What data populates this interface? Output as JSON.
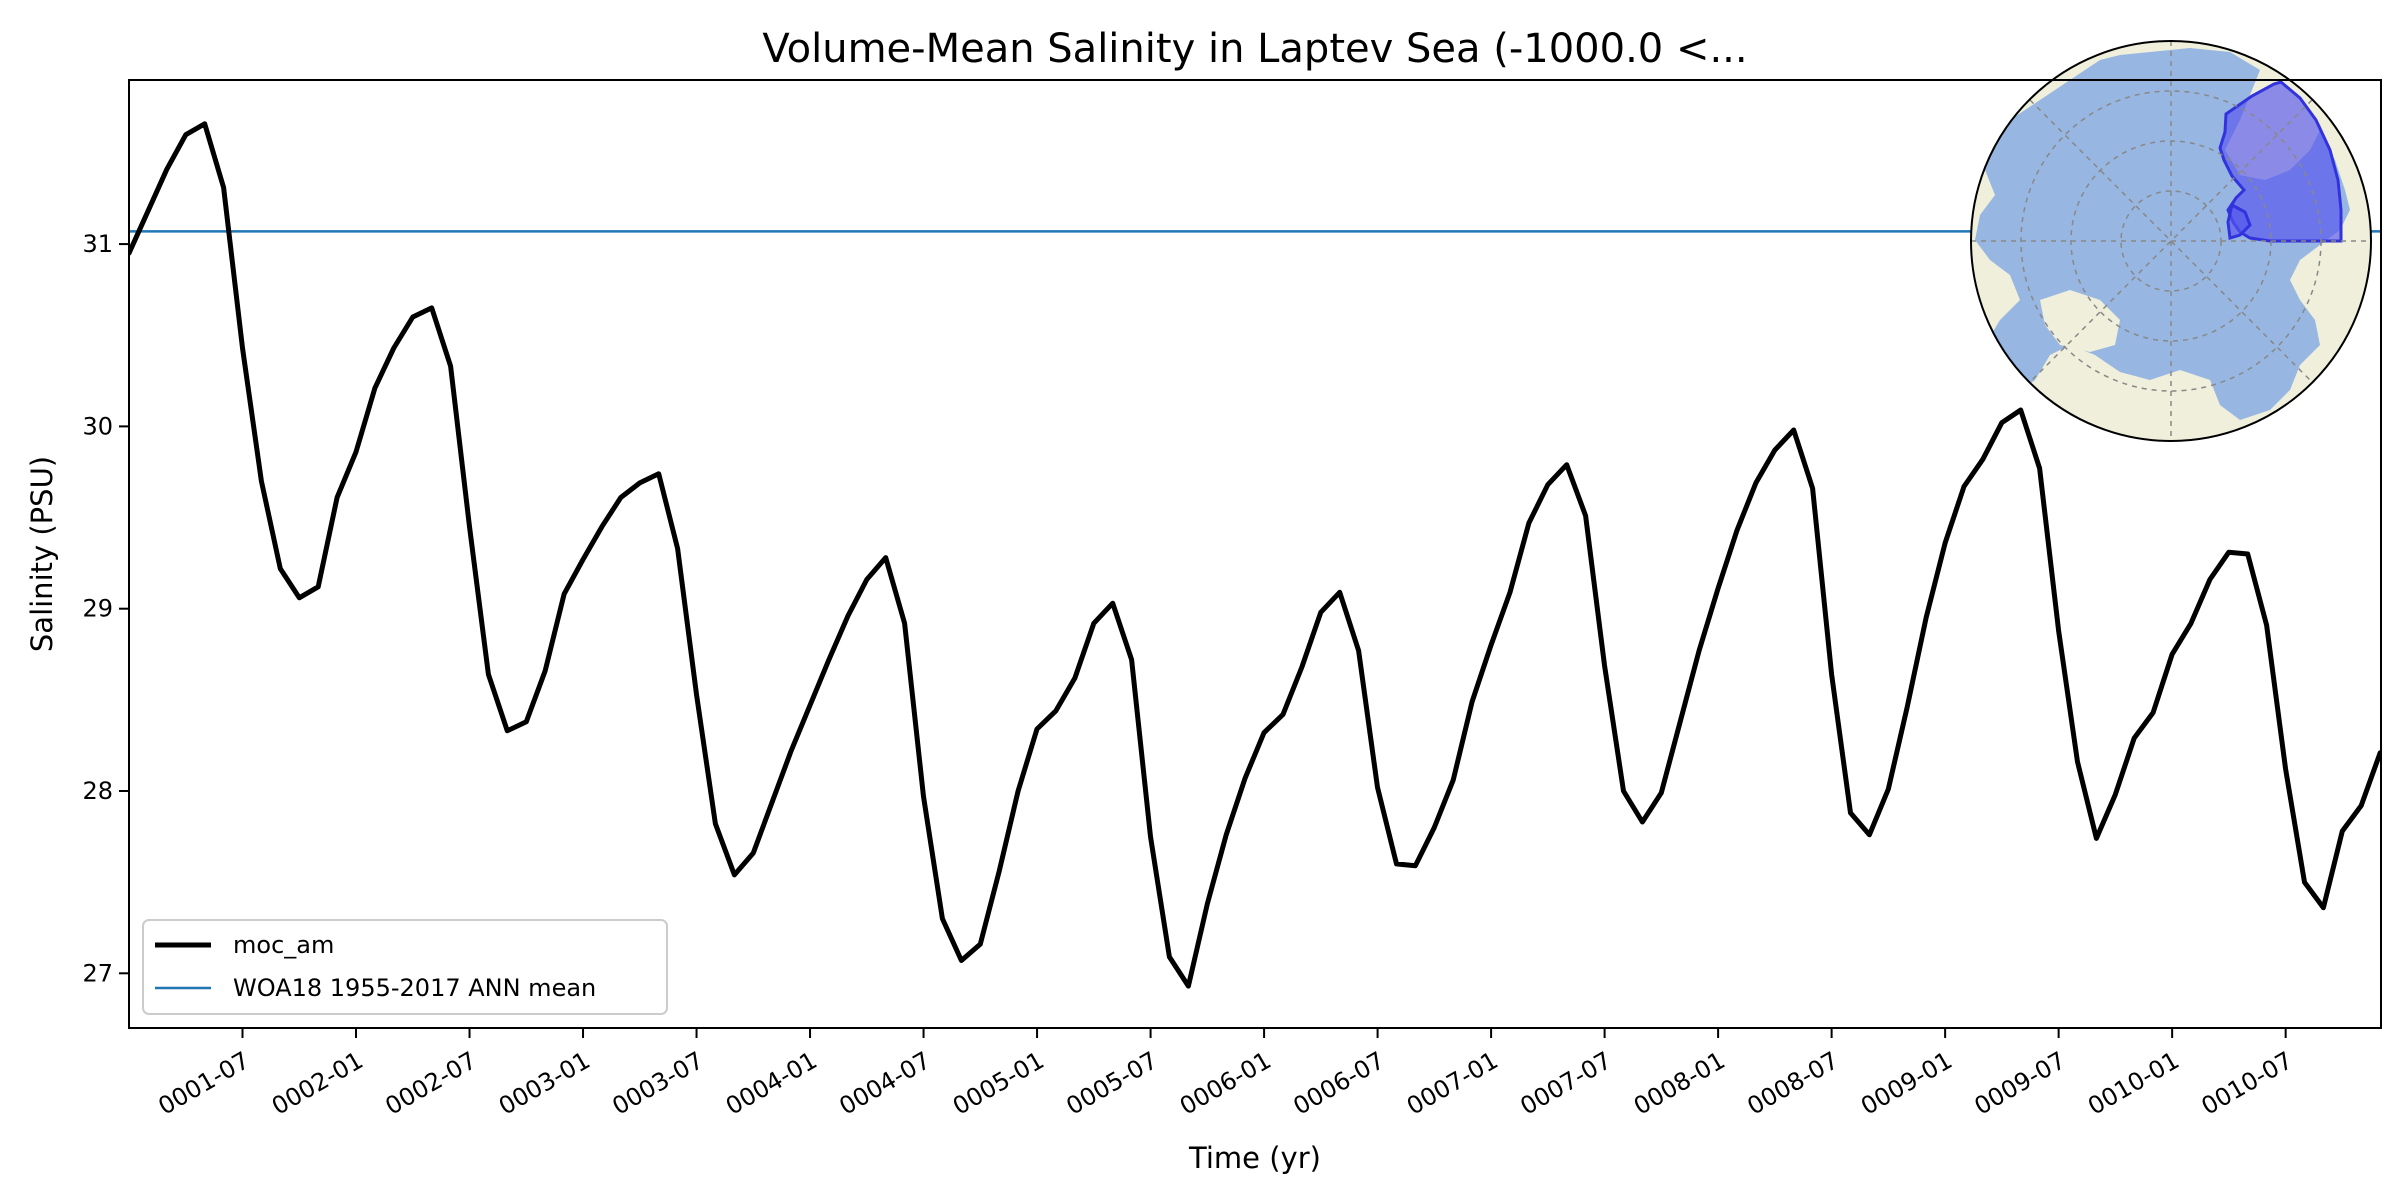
{
  "chart_data": {
    "type": "line",
    "title": "Volume-Mean Salinity in Laptev Sea (-1000.0 <...",
    "xlabel": "Time (yr)",
    "ylabel": "Salinity (PSU)",
    "xlim": [
      0.0,
      9.92
    ],
    "ylim": [
      26.7,
      31.9
    ],
    "x_ticks": [
      {
        "x": 0.5,
        "label": "0001-07"
      },
      {
        "x": 1.0,
        "label": "0002-01"
      },
      {
        "x": 1.5,
        "label": "0002-07"
      },
      {
        "x": 2.0,
        "label": "0003-01"
      },
      {
        "x": 2.5,
        "label": "0003-07"
      },
      {
        "x": 3.0,
        "label": "0004-01"
      },
      {
        "x": 3.5,
        "label": "0004-07"
      },
      {
        "x": 4.0,
        "label": "0005-01"
      },
      {
        "x": 4.5,
        "label": "0005-07"
      },
      {
        "x": 5.0,
        "label": "0006-01"
      },
      {
        "x": 5.5,
        "label": "0006-07"
      },
      {
        "x": 6.0,
        "label": "0007-01"
      },
      {
        "x": 6.5,
        "label": "0007-07"
      },
      {
        "x": 7.0,
        "label": "0008-01"
      },
      {
        "x": 7.5,
        "label": "0008-07"
      },
      {
        "x": 8.0,
        "label": "0009-01"
      },
      {
        "x": 8.5,
        "label": "0009-07"
      },
      {
        "x": 9.0,
        "label": "0010-01"
      },
      {
        "x": 9.5,
        "label": "0010-07"
      }
    ],
    "y_ticks": [
      27,
      28,
      29,
      30,
      31
    ],
    "series": [
      {
        "name": "moc_am",
        "color": "#000000",
        "x_start": 0.0,
        "x_step": 0.08333,
        "values": [
          30.95,
          31.18,
          31.41,
          31.6,
          31.66,
          31.31,
          30.43,
          29.7,
          29.22,
          29.06,
          29.12,
          29.61,
          29.86,
          30.21,
          30.43,
          30.6,
          30.65,
          30.33,
          29.45,
          28.64,
          28.33,
          28.38,
          28.66,
          29.08,
          29.27,
          29.45,
          29.61,
          29.69,
          29.74,
          29.33,
          28.53,
          27.82,
          27.54,
          27.66,
          27.94,
          28.22,
          28.47,
          28.72,
          28.96,
          29.16,
          29.28,
          28.92,
          27.97,
          27.3,
          27.07,
          27.16,
          27.56,
          28.0,
          28.34,
          28.44,
          28.62,
          28.92,
          29.03,
          28.72,
          27.75,
          27.09,
          26.93,
          27.38,
          27.76,
          28.07,
          28.32,
          28.42,
          28.68,
          28.98,
          29.09,
          28.77,
          28.02,
          27.6,
          27.59,
          27.8,
          28.06,
          28.49,
          28.8,
          29.09,
          29.47,
          29.68,
          29.79,
          29.51,
          28.69,
          28.0,
          27.83,
          27.99,
          28.38,
          28.77,
          29.11,
          29.43,
          29.69,
          29.87,
          29.98,
          29.66,
          28.64,
          27.88,
          27.76,
          28.01,
          28.46,
          28.95,
          29.36,
          29.67,
          29.82,
          30.02,
          30.09,
          29.77,
          28.88,
          28.16,
          27.74,
          27.98,
          28.29,
          28.43,
          28.75,
          28.92,
          29.16,
          29.31,
          29.3,
          28.91,
          28.12,
          27.5,
          27.36,
          27.78,
          27.92,
          28.21
        ]
      },
      {
        "name": "WOA18 1955-2017 ANN mean",
        "color": "#1f77b4",
        "constant": 31.07
      }
    ],
    "legend": {
      "location": "lower-left",
      "entries": [
        "moc_am",
        "WOA18 1955-2017 ANN mean"
      ]
    },
    "inset": {
      "description": "north-polar-map",
      "land_color": "#efefdb",
      "ocean_color": "#97b6e2",
      "region_color": "#5555ee"
    }
  }
}
